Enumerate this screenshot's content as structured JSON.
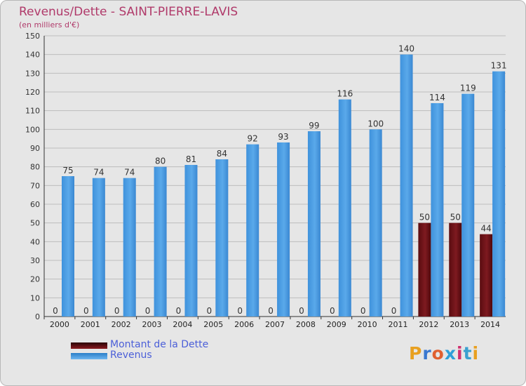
{
  "header": {
    "title": "Revenus/Dette - SAINT-PIERRE-LAVIS",
    "subtitle": "(en milliers d'€)"
  },
  "chart_data": {
    "type": "bar",
    "title": "Revenus/Dette - SAINT-PIERRE-LAVIS",
    "subtitle": "(en milliers d'€)",
    "categories": [
      "2000",
      "2001",
      "2002",
      "2003",
      "2004",
      "2005",
      "2006",
      "2007",
      "2008",
      "2009",
      "2010",
      "2011",
      "2012",
      "2013",
      "2014"
    ],
    "series": [
      {
        "name": "Montant de la Dette",
        "color": "#6b0f14",
        "values": [
          0,
          0,
          0,
          0,
          0,
          0,
          0,
          0,
          0,
          0,
          0,
          0,
          50,
          50,
          44
        ]
      },
      {
        "name": "Revenus",
        "color": "#4a9be0",
        "values": [
          75,
          74,
          74,
          80,
          81,
          84,
          92,
          93,
          99,
          116,
          100,
          140,
          114,
          119,
          131
        ]
      }
    ],
    "ylim": [
      0,
      150
    ],
    "ytick_step": 10,
    "grid": true,
    "legend_position": "bottom-left"
  },
  "legend": {
    "items": [
      {
        "label": "Montant de la Dette",
        "color": "#6b0f14"
      },
      {
        "label": "Revenus",
        "color": "#4a9be0"
      }
    ]
  },
  "logo": {
    "text": "Proxiti",
    "letter_colors": [
      "#e8a020",
      "#3a78d0",
      "#e06030",
      "#2f9fd8",
      "#d03070",
      "#3aa0d0",
      "#e8a020"
    ]
  }
}
